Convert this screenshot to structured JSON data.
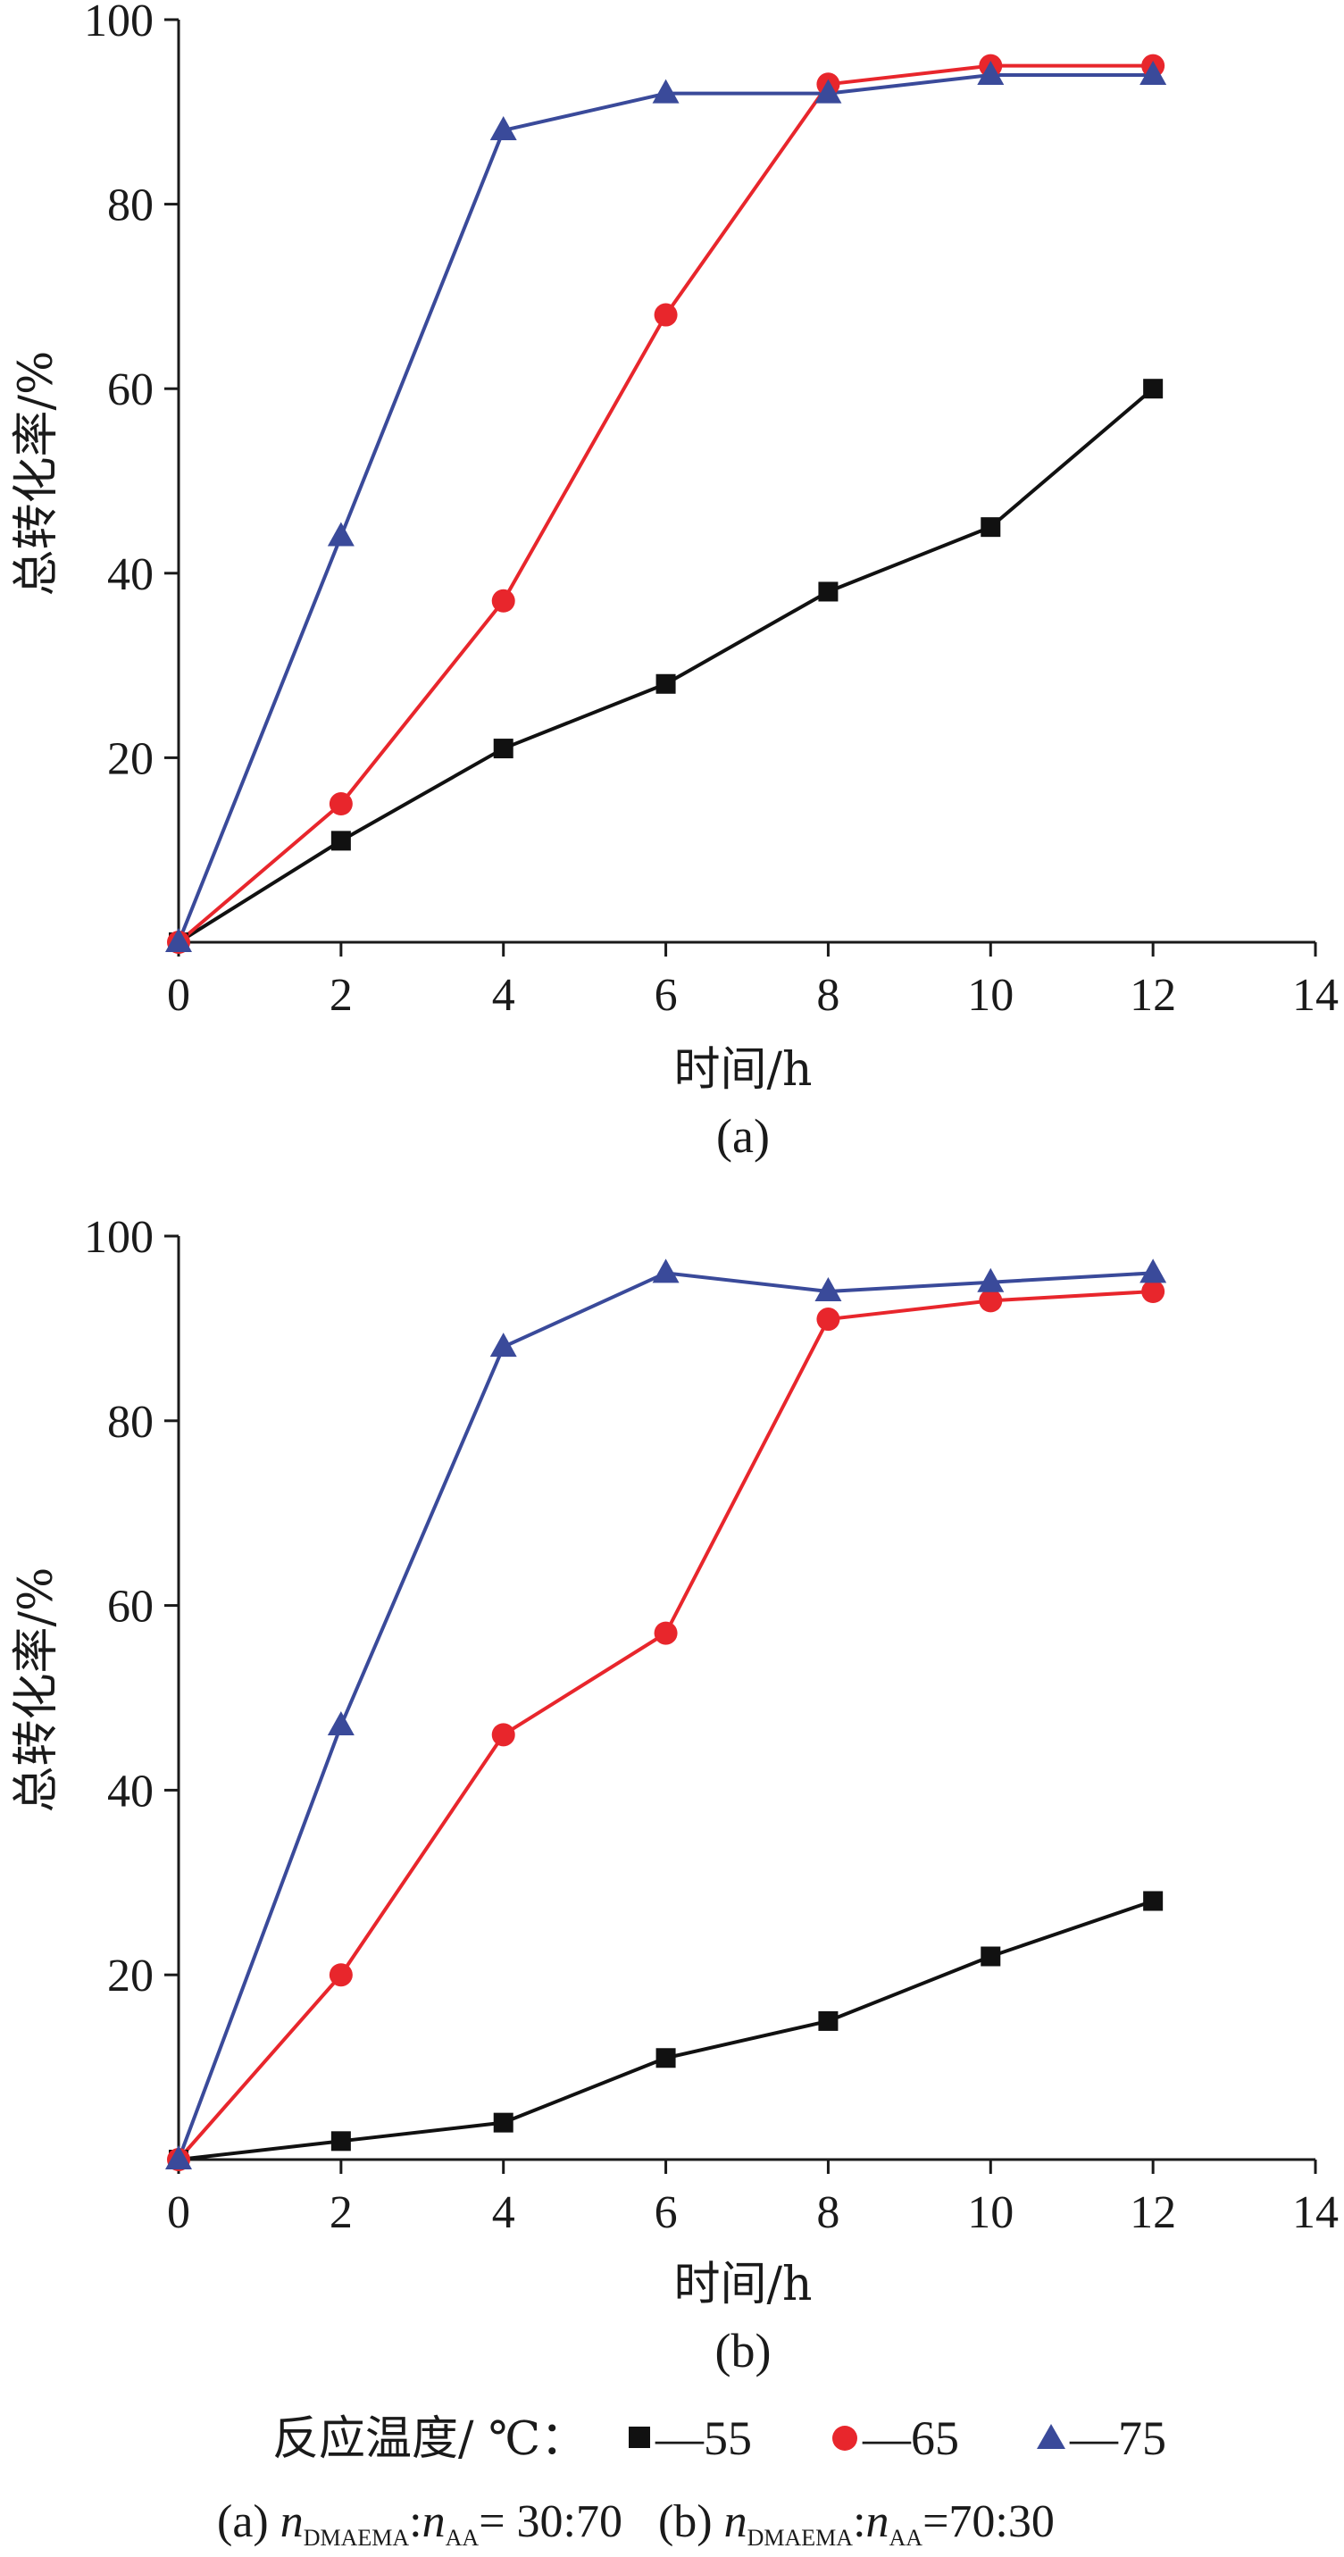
{
  "chart_data": [
    {
      "type": "line",
      "panel_label": "(a)",
      "xlabel": "时间/h",
      "ylabel": "总转化率/%",
      "xlim": [
        0,
        14
      ],
      "ylim": [
        0,
        100
      ],
      "x_ticks": [
        "0",
        "2",
        "4",
        "6",
        "8",
        "10",
        "12",
        "14"
      ],
      "y_ticks": [
        "20",
        "40",
        "60",
        "80",
        "100"
      ],
      "x": [
        0,
        2,
        4,
        6,
        8,
        10,
        12
      ],
      "series": [
        {
          "name": "55",
          "marker": "square",
          "color": "#111111",
          "values": [
            0,
            11,
            21,
            28,
            38,
            45,
            60
          ]
        },
        {
          "name": "65",
          "marker": "circle",
          "color": "#e8262c",
          "values": [
            0,
            15,
            37,
            68,
            93,
            95,
            95
          ]
        },
        {
          "name": "75",
          "marker": "triangle",
          "color": "#3a4a9a",
          "values": [
            0,
            44,
            88,
            92,
            92,
            94,
            94
          ]
        }
      ]
    },
    {
      "type": "line",
      "panel_label": "(b)",
      "xlabel": "时间/h",
      "ylabel": "总转化率/%",
      "xlim": [
        0,
        14
      ],
      "ylim": [
        0,
        100
      ],
      "x_ticks": [
        "0",
        "2",
        "4",
        "6",
        "8",
        "10",
        "12",
        "14"
      ],
      "y_ticks": [
        "20",
        "40",
        "60",
        "80",
        "100"
      ],
      "x": [
        0,
        2,
        4,
        6,
        8,
        10,
        12
      ],
      "series": [
        {
          "name": "55",
          "marker": "square",
          "color": "#111111",
          "values": [
            0,
            2,
            4,
            11,
            15,
            22,
            28
          ]
        },
        {
          "name": "65",
          "marker": "circle",
          "color": "#e8262c",
          "values": [
            0,
            20,
            46,
            57,
            91,
            93,
            94
          ]
        },
        {
          "name": "75",
          "marker": "triangle",
          "color": "#3a4a9a",
          "values": [
            0,
            47,
            88,
            96,
            94,
            95,
            96
          ]
        }
      ]
    }
  ],
  "legend": {
    "title": "反应温度/ ℃：",
    "entries": [
      {
        "label": "—55",
        "marker": "square",
        "color": "#111111"
      },
      {
        "label": "—65",
        "marker": "circle",
        "color": "#e8262c"
      },
      {
        "label": "—75",
        "marker": "triangle",
        "color": "#3a4a9a"
      }
    ]
  },
  "caption": {
    "a_prefix": "(a) ",
    "n": "n",
    "sub_dmaema": "DMAEMA",
    "colon": ":",
    "sub_aa": "AA",
    "a_ratio": "= 30:70",
    "b_prefix": "(b) ",
    "b_ratio": "=70:30"
  }
}
